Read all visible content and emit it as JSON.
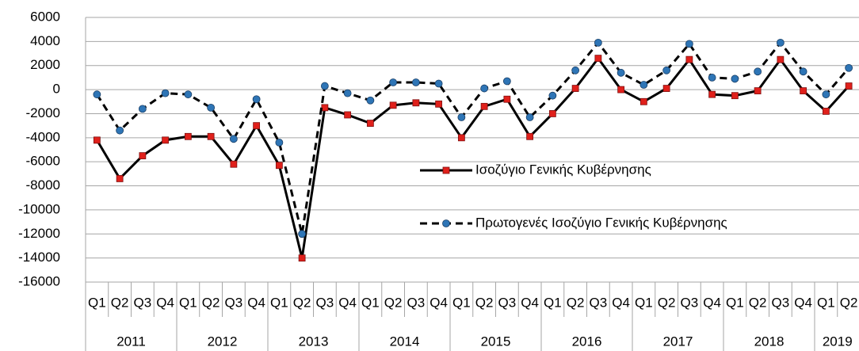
{
  "chart_data": {
    "type": "line",
    "categories": [
      "Q1",
      "Q2",
      "Q3",
      "Q4",
      "Q1",
      "Q2",
      "Q3",
      "Q4",
      "Q1",
      "Q2",
      "Q3",
      "Q4",
      "Q1",
      "Q2",
      "Q3",
      "Q4",
      "Q1",
      "Q2",
      "Q3",
      "Q4",
      "Q1",
      "Q2",
      "Q3",
      "Q4",
      "Q1",
      "Q2",
      "Q3",
      "Q4",
      "Q1",
      "Q2",
      "Q3",
      "Q4",
      "Q1",
      "Q2"
    ],
    "category_groups": [
      {
        "label": "2011",
        "count": 4
      },
      {
        "label": "2012",
        "count": 4
      },
      {
        "label": "2013",
        "count": 4
      },
      {
        "label": "2014",
        "count": 4
      },
      {
        "label": "2015",
        "count": 4
      },
      {
        "label": "2016",
        "count": 4
      },
      {
        "label": "2017",
        "count": 4
      },
      {
        "label": "2018",
        "count": 4
      },
      {
        "label": "2019",
        "count": 2
      }
    ],
    "series": [
      {
        "name": "Ισοζύγιο Γενικής Κυβέρνησης",
        "color": "#000000",
        "marker_color": "#e0201b",
        "marker": "square",
        "dash": false,
        "values": [
          -4200,
          -7400,
          -5500,
          -4200,
          -3900,
          -3900,
          -6200,
          -3000,
          -6300,
          -14000,
          -1500,
          -2100,
          -2800,
          -1300,
          -1100,
          -1200,
          -4000,
          -1400,
          -800,
          -3900,
          -2000,
          100,
          2600,
          0,
          -1000,
          100,
          2500,
          -400,
          -500,
          -100,
          2500,
          -100,
          -1800,
          300
        ]
      },
      {
        "name": "Πρωτογενές Ισοζύγιο Γενικής Κυβέρνησης",
        "color": "#000000",
        "marker_color": "#2e75b6",
        "marker": "circle",
        "dash": true,
        "values": [
          -400,
          -3400,
          -1600,
          -300,
          -400,
          -1500,
          -4100,
          -800,
          -4400,
          -12000,
          300,
          -300,
          -900,
          600,
          600,
          500,
          -2300,
          100,
          700,
          -2300,
          -500,
          1600,
          3900,
          1400,
          400,
          1600,
          3800,
          1000,
          900,
          1500,
          3900,
          1500,
          -400,
          1800
        ]
      }
    ],
    "ylim": [
      -16000,
      6000
    ],
    "yticks": [
      -16000,
      -14000,
      -12000,
      -10000,
      -8000,
      -6000,
      -4000,
      -2000,
      0,
      2000,
      4000,
      6000
    ],
    "grid": true,
    "legend": "middle-right"
  }
}
